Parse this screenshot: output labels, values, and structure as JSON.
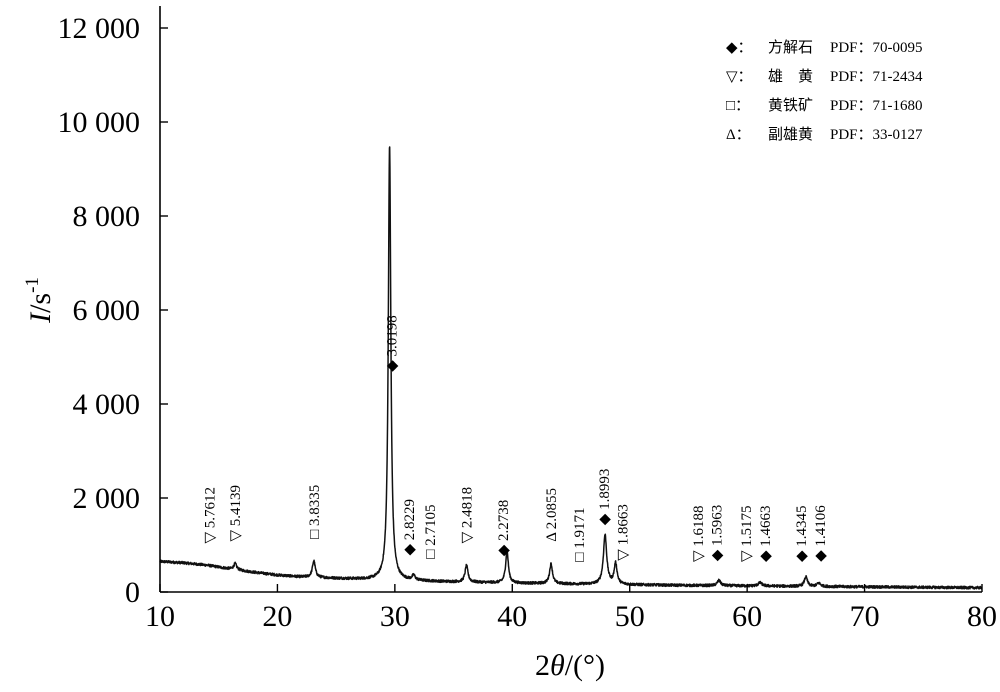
{
  "chart_data": {
    "type": "line",
    "xlabel_base": "2",
    "xlabel_var": "θ",
    "xlabel_unit": "/(°)",
    "ylabel_var": "I",
    "ylabel_unit": "/s",
    "ylabel_exp": "-1",
    "xlim": [
      10,
      80
    ],
    "ylim": [
      0,
      12000
    ],
    "x_ticks": [
      {
        "v": 10,
        "label": "10"
      },
      {
        "v": 20,
        "label": "20"
      },
      {
        "v": 30,
        "label": "30"
      },
      {
        "v": 40,
        "label": "40"
      },
      {
        "v": 50,
        "label": "50"
      },
      {
        "v": 60,
        "label": "60"
      },
      {
        "v": 70,
        "label": "70"
      },
      {
        "v": 80,
        "label": "80"
      }
    ],
    "y_ticks": [
      {
        "v": 0,
        "label": "0"
      },
      {
        "v": 2000,
        "label": "2 000"
      },
      {
        "v": 4000,
        "label": "4 000"
      },
      {
        "v": 6000,
        "label": "6 000"
      },
      {
        "v": 8000,
        "label": "8 000"
      },
      {
        "v": 10000,
        "label": "10 000"
      },
      {
        "v": 12000,
        "label": "12 000"
      }
    ],
    "legend_placement": "top-right",
    "legend": [
      {
        "symbol": "◆",
        "sep": "：",
        "name": "方解石",
        "pdf": "PDF：70-0095"
      },
      {
        "symbol": "▽",
        "sep": "：",
        "name": "雄　黄",
        "pdf": "PDF：71-2434"
      },
      {
        "symbol": "□",
        "sep": "：",
        "name": "黄铁矿",
        "pdf": "PDF：71-1680"
      },
      {
        "symbol": "Δ",
        "sep": "：",
        "name": "副雄黄",
        "pdf": "PDF：33-0127"
      }
    ],
    "baseline": [
      [
        10,
        650
      ],
      [
        12,
        620
      ],
      [
        14,
        570
      ],
      [
        16,
        490
      ],
      [
        18,
        420
      ],
      [
        20,
        360
      ],
      [
        22,
        320
      ],
      [
        24,
        300
      ],
      [
        26,
        280
      ],
      [
        28,
        260
      ],
      [
        30,
        245
      ],
      [
        35,
        215
      ],
      [
        40,
        190
      ],
      [
        45,
        170
      ],
      [
        50,
        155
      ],
      [
        55,
        140
      ],
      [
        60,
        130
      ],
      [
        65,
        120
      ],
      [
        70,
        110
      ],
      [
        75,
        100
      ],
      [
        80,
        90
      ]
    ],
    "peaks": [
      {
        "x": 16.4,
        "h": 130,
        "w": 0.15,
        "symbol": "▽",
        "label": "5.4139"
      },
      {
        "x": 23.1,
        "h": 350,
        "w": 0.15,
        "symbol": "□",
        "label": "3.8335"
      },
      {
        "x": 29.55,
        "h": 9250,
        "w": 0.13,
        "symbol": "◆",
        "label": "3.0198"
      },
      {
        "x": 31.6,
        "h": 100,
        "w": 0.15,
        "symbol": "◆",
        "label": "2.8229"
      },
      {
        "x": 36.1,
        "h": 350,
        "w": 0.15,
        "symbol": "▽",
        "label": "2.4818"
      },
      {
        "x": 39.55,
        "h": 680,
        "w": 0.14,
        "symbol": "◆",
        "label": "2.2738"
      },
      {
        "x": 43.3,
        "h": 420,
        "w": 0.15,
        "symbol": "Δ",
        "label": "2.0855"
      },
      {
        "x": 47.9,
        "h": 1050,
        "w": 0.17,
        "symbol": "◆",
        "label": "1.8993"
      },
      {
        "x": 48.8,
        "h": 440,
        "w": 0.15,
        "symbol": "▽",
        "label": "1.8663"
      },
      {
        "x": 57.6,
        "h": 110,
        "w": 0.18,
        "symbol": "◆",
        "label": "1.5963"
      },
      {
        "x": 61.1,
        "h": 70,
        "w": 0.2,
        "symbol": "◆",
        "label": "1.4663"
      },
      {
        "x": 65.0,
        "h": 200,
        "w": 0.16,
        "symbol": "◆",
        "label": "1.4345"
      },
      {
        "x": 66.1,
        "h": 70,
        "w": 0.18,
        "symbol": "◆",
        "label": "1.4106"
      }
    ],
    "annotations": [
      {
        "x": 14.2,
        "symbol": "▽",
        "label": "5.7612"
      },
      {
        "x": 16.4,
        "symbol": "▽",
        "label": "5.4139"
      },
      {
        "x": 23.1,
        "symbol": "□",
        "label": "3.8335"
      },
      {
        "x": 29.7,
        "symbol": "◆",
        "label": "3.0198"
      },
      {
        "x": 31.2,
        "symbol": "◆",
        "label": "2.8229"
      },
      {
        "x": 33.0,
        "symbol": "□",
        "label": "2.7105"
      },
      {
        "x": 36.1,
        "symbol": "▽",
        "label": "2.4818"
      },
      {
        "x": 39.2,
        "symbol": "◆",
        "label": "2.2738"
      },
      {
        "x": 43.3,
        "symbol": "Δ",
        "label": "2.0855"
      },
      {
        "x": 45.7,
        "symbol": "□",
        "label": "1.9171"
      },
      {
        "x": 47.8,
        "symbol": "◆",
        "label": "1.8993"
      },
      {
        "x": 49.4,
        "symbol": "▽",
        "label": "1.8663"
      },
      {
        "x": 55.8,
        "symbol": "▽",
        "label": "1.6188"
      },
      {
        "x": 57.4,
        "symbol": "◆",
        "label": "1.5963"
      },
      {
        "x": 59.9,
        "symbol": "▽",
        "label": "1.5175"
      },
      {
        "x": 61.5,
        "symbol": "◆",
        "label": "1.4663"
      },
      {
        "x": 64.6,
        "symbol": "◆",
        "label": "1.4345"
      },
      {
        "x": 66.2,
        "symbol": "◆",
        "label": "1.4106"
      }
    ]
  }
}
